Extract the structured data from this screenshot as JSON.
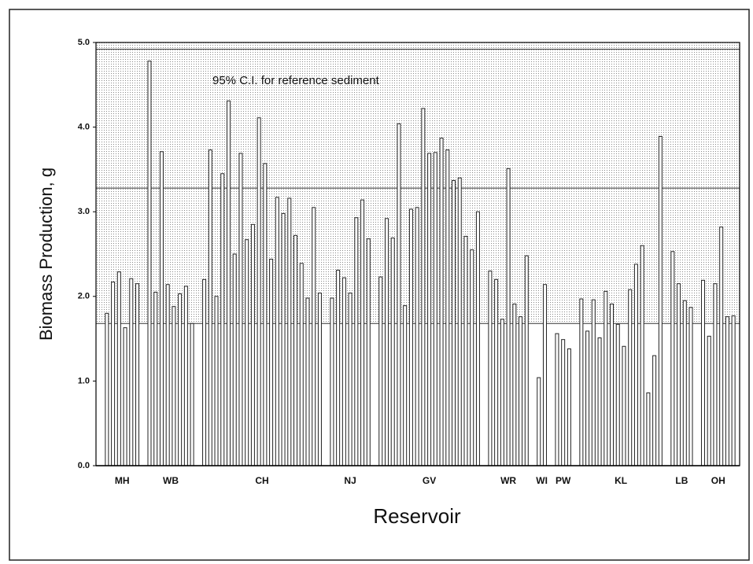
{
  "chart_data": {
    "type": "bar",
    "y_label": "Biomass Production, g",
    "x_label": "Reservoir",
    "annotation": "95% C.I. for reference sediment",
    "ylim": [
      0,
      5
    ],
    "yticks": [
      {
        "value": 0,
        "label": "0.0"
      },
      {
        "value": 1,
        "label": "1.0"
      },
      {
        "value": 2,
        "label": "2.0"
      },
      {
        "value": 3,
        "label": "3.0"
      },
      {
        "value": 4,
        "label": "4.0"
      },
      {
        "value": 5,
        "label": "5.0"
      }
    ],
    "reference_lines": [
      1.68,
      3.28,
      4.92
    ],
    "color": "#ffffff",
    "groups": [
      {
        "name": "MH",
        "values": [
          1.8,
          2.17,
          2.29,
          1.63,
          2.21,
          2.15
        ]
      },
      {
        "name": "WB",
        "values": [
          4.78,
          2.05,
          3.71,
          2.14,
          1.88,
          2.03,
          2.12,
          1.68
        ]
      },
      {
        "name": "CH",
        "values": [
          2.2,
          3.73,
          2.0,
          3.45,
          4.31,
          2.5,
          3.69,
          2.67,
          2.85,
          4.11,
          3.57,
          2.44,
          3.17,
          2.98,
          3.16,
          2.72,
          2.39,
          1.98,
          3.05,
          2.04
        ]
      },
      {
        "name": "NJ",
        "values": [
          1.98,
          2.31,
          2.22,
          2.04,
          2.93,
          3.14,
          2.68
        ]
      },
      {
        "name": "GV",
        "values": [
          2.23,
          2.92,
          2.69,
          4.04,
          1.89,
          3.03,
          3.05,
          4.22,
          3.69,
          3.7,
          3.87,
          3.73,
          3.37,
          3.4,
          2.71,
          2.55,
          3.0
        ]
      },
      {
        "name": "WR",
        "values": [
          2.3,
          2.2,
          1.73,
          3.51,
          1.91,
          1.76,
          2.48
        ]
      },
      {
        "name": "WI",
        "values": [
          1.04,
          2.14
        ]
      },
      {
        "name": "PW",
        "values": [
          1.56,
          1.49,
          1.38
        ]
      },
      {
        "name": "KL",
        "values": [
          1.97,
          1.59,
          1.96,
          1.51,
          2.06,
          1.91,
          1.67,
          1.41,
          2.08,
          2.38,
          2.6,
          0.86,
          1.3,
          3.89
        ]
      },
      {
        "name": "LB",
        "values": [
          2.53,
          2.15,
          1.95,
          1.87
        ]
      },
      {
        "name": "OH",
        "values": [
          2.19,
          1.53,
          2.15,
          2.82,
          1.76,
          1.77
        ]
      }
    ]
  }
}
